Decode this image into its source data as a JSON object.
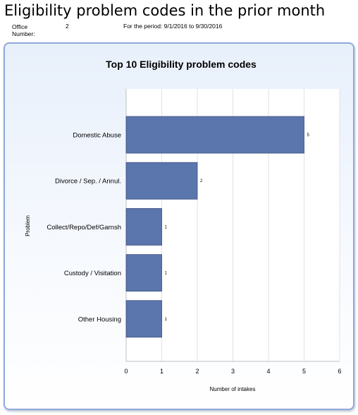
{
  "header": {
    "title": "Eligibility problem codes in the prior month",
    "office_label": "Office Number:",
    "office_value": "2",
    "period": "For the period: 9/1/2016 to 9/30/2016"
  },
  "colors": {
    "bar": "#5b75ad",
    "bar_stroke": "#3b4f7e",
    "frame_border": "#8fa9d9"
  },
  "chart_data": {
    "type": "bar",
    "orientation": "horizontal",
    "title": "Top 10 Eligibility problem codes",
    "xlabel": "Number of intakes",
    "ylabel": "Problem",
    "categories": [
      "Domestic Abuse",
      "Divorce / Sep. / Annul.",
      "Collect/Repo/Def/Garnsh",
      "Custody / Visitation",
      "Other Housing"
    ],
    "values": [
      5,
      2,
      1,
      1,
      1
    ],
    "value_labels": [
      "5",
      "2",
      "1",
      "1",
      "1"
    ],
    "xlim": [
      0,
      6
    ],
    "xticks": [
      "0",
      "1",
      "2",
      "3",
      "4",
      "5",
      "6"
    ],
    "grid": true,
    "legend": "none"
  }
}
